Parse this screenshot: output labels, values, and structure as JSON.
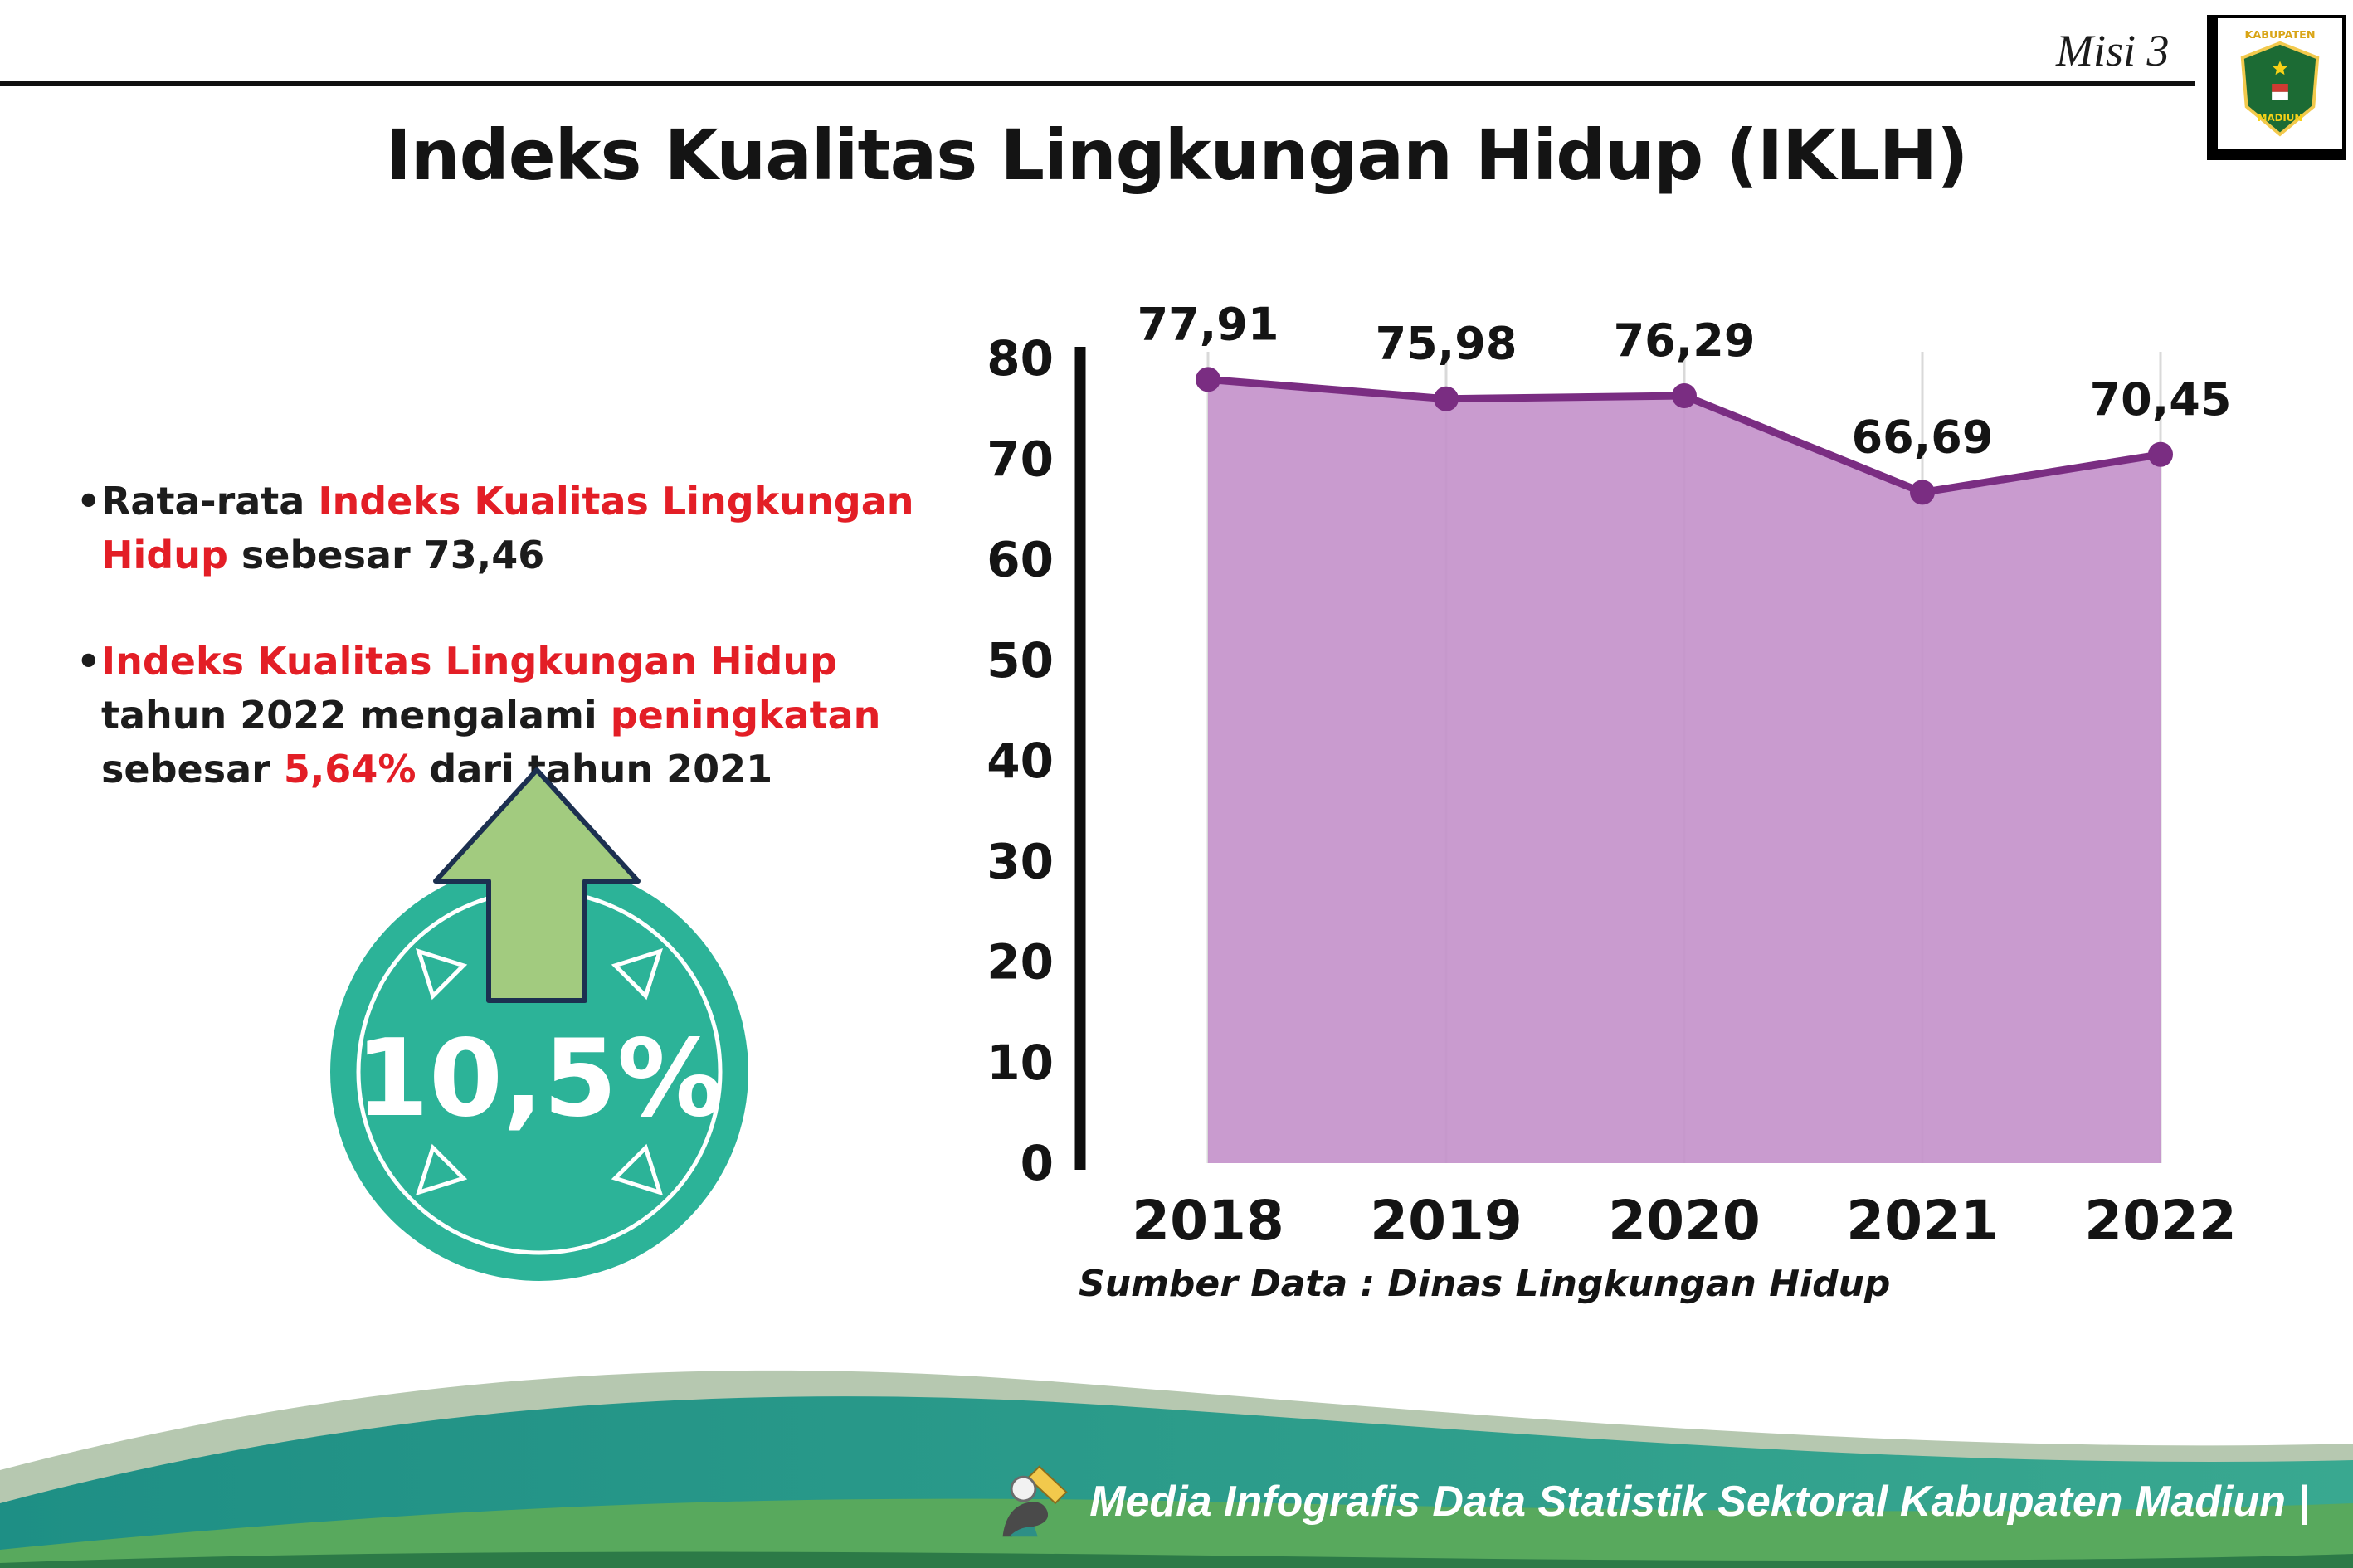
{
  "header": {
    "misi_label": "Misi 3",
    "title": "Indeks Kualitas Lingkungan Hidup (IKLH)",
    "logo": {
      "top_text": "KABUPATEN",
      "bottom_text": "MADIUN"
    }
  },
  "bullets": {
    "bullet_char": "•",
    "b1": {
      "s1": "Rata-rata ",
      "s2": "Indeks Kualitas Lingkungan Hidup",
      "s3": " sebesar 73,46"
    },
    "b2": {
      "s1": "Indeks Kualitas Lingkungan Hidup",
      "s2": " tahun 2022 mengalami ",
      "s3": "peningkatan",
      "s4": " sebesar ",
      "s5": "5,64%",
      "s6": " dari tahun 2021"
    }
  },
  "badge": {
    "value": "10,5%"
  },
  "chart_data": {
    "type": "area",
    "title": "Indeks Kualitas Lingkungan Hidup (IKLH)",
    "categories": [
      "2018",
      "2019",
      "2020",
      "2021",
      "2022"
    ],
    "values": [
      77.91,
      75.98,
      76.29,
      66.69,
      70.45
    ],
    "value_labels": [
      "77,91",
      "75,98",
      "76,29",
      "66,69",
      "70,45"
    ],
    "ylim": [
      0,
      85
    ],
    "yticks": [
      0,
      10,
      20,
      30,
      40,
      50,
      60,
      70,
      80
    ],
    "grid": "vertical",
    "legend": "none",
    "area_color": "#c493cb",
    "line_color": "#7a2d82",
    "source": "Sumber Data : Dinas Lingkungan Hidup"
  },
  "footer": {
    "credit": "Media Infografis Data Statistik Sektoral Kabupaten Madiun |"
  },
  "colors": {
    "accent_red": "#e31e26",
    "badge_teal": "#2cb398",
    "arrow_green": "#a2cb7f",
    "wave_teal": "#2a9b8c",
    "wave_green": "#58a95d"
  }
}
